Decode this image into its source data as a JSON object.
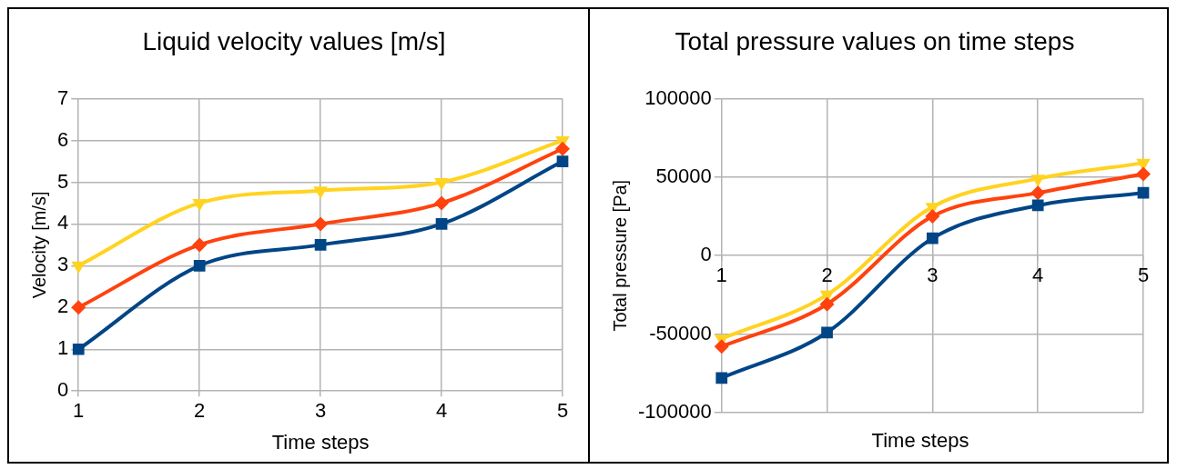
{
  "chart_data": [
    {
      "type": "line",
      "title": "Liquid velocity values [m/s]",
      "xlabel": "Time steps",
      "ylabel": "Velocity [m/s]",
      "categories": [
        "1",
        "2",
        "3",
        "4",
        "5"
      ],
      "ylim": [
        0,
        7
      ],
      "yticks": [
        0,
        1,
        2,
        3,
        4,
        5,
        6,
        7
      ],
      "grid": true,
      "legend": false,
      "series": [
        {
          "color": "#004586",
          "marker": "square",
          "values": [
            1,
            3,
            3.5,
            4,
            5.5
          ]
        },
        {
          "color": "#ff420e",
          "marker": "diamond",
          "values": [
            2,
            3.5,
            4,
            4.5,
            5.8
          ]
        },
        {
          "color": "#ffd320",
          "marker": "triangle",
          "values": [
            3,
            4.5,
            4.8,
            5,
            6
          ]
        }
      ]
    },
    {
      "type": "line",
      "title": "Total pressure values on time steps",
      "xlabel": "Time steps",
      "ylabel": "Total pressure [Pa]",
      "categories": [
        "1",
        "2",
        "3",
        "4",
        "5"
      ],
      "ylim": [
        -100000,
        100000
      ],
      "yticks": [
        -100000,
        -50000,
        0,
        50000,
        100000
      ],
      "grid": true,
      "legend": false,
      "series": [
        {
          "color": "#004586",
          "marker": "square",
          "values": [
            -78000,
            -49000,
            11000,
            32000,
            40000
          ]
        },
        {
          "color": "#ff420e",
          "marker": "diamond",
          "values": [
            -58000,
            -31000,
            25000,
            40000,
            52000
          ]
        },
        {
          "color": "#ffd320",
          "marker": "triangle",
          "values": [
            -53000,
            -25000,
            31000,
            49000,
            59000
          ]
        }
      ]
    }
  ]
}
